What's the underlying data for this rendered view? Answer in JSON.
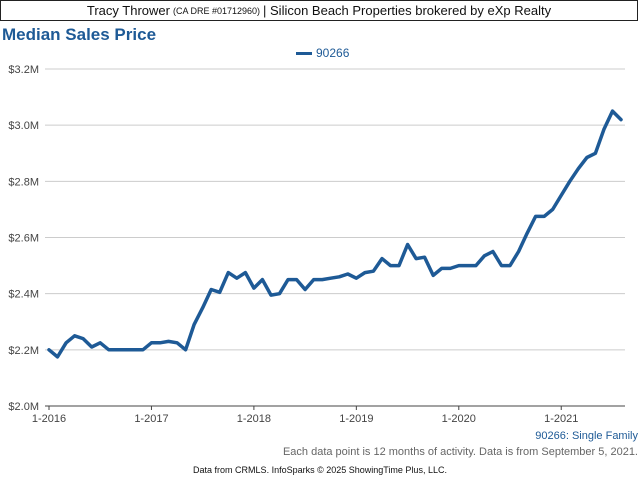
{
  "header": {
    "agent": "Tracy Thrower",
    "dre": "(CA DRE #01712960)",
    "brokerage": "| Silicon Beach Properties brokered by eXp Realty"
  },
  "chart_title": "Median Sales Price",
  "legend_label": "90266",
  "series_description": "90266: Single Family",
  "note": "Each data point is 12 months of activity. Data is from September 5, 2021.",
  "footer": "Data from CRMLS. InfoSparks © 2025 ShowingTime Plus, LLC.",
  "colors": {
    "series": "#1e5a96",
    "grid": "#cccccc",
    "axis": "#444444"
  },
  "chart_data": {
    "type": "line",
    "title": "Median Sales Price",
    "xlabel": "",
    "ylabel": "",
    "ylim": [
      2000000,
      3200000
    ],
    "y_ticks": [
      {
        "value": 2000000,
        "label": "$2.0M"
      },
      {
        "value": 2200000,
        "label": "$2.2M"
      },
      {
        "value": 2400000,
        "label": "$2.4M"
      },
      {
        "value": 2600000,
        "label": "$2.6M"
      },
      {
        "value": 2800000,
        "label": "$2.8M"
      },
      {
        "value": 3000000,
        "label": "$3.0M"
      },
      {
        "value": 3200000,
        "label": "$3.2M"
      }
    ],
    "x_ticks": [
      {
        "date": "2016-01",
        "label": "1-2016"
      },
      {
        "date": "2017-01",
        "label": "1-2017"
      },
      {
        "date": "2018-01",
        "label": "1-2018"
      },
      {
        "date": "2019-01",
        "label": "1-2019"
      },
      {
        "date": "2020-01",
        "label": "1-2020"
      },
      {
        "date": "2021-01",
        "label": "1-2021"
      }
    ],
    "xlim": [
      "2016-01",
      "2021-08"
    ],
    "grid": true,
    "legend_position": "top-center",
    "series": [
      {
        "name": "90266",
        "x": [
          "2016-01",
          "2016-02",
          "2016-03",
          "2016-04",
          "2016-05",
          "2016-06",
          "2016-07",
          "2016-08",
          "2016-09",
          "2016-10",
          "2016-11",
          "2016-12",
          "2017-01",
          "2017-02",
          "2017-03",
          "2017-04",
          "2017-05",
          "2017-06",
          "2017-07",
          "2017-08",
          "2017-09",
          "2017-10",
          "2017-11",
          "2017-12",
          "2018-01",
          "2018-02",
          "2018-03",
          "2018-04",
          "2018-05",
          "2018-06",
          "2018-07",
          "2018-08",
          "2018-09",
          "2018-10",
          "2018-11",
          "2018-12",
          "2019-01",
          "2019-02",
          "2019-03",
          "2019-04",
          "2019-05",
          "2019-06",
          "2019-07",
          "2019-08",
          "2019-09",
          "2019-10",
          "2019-11",
          "2019-12",
          "2020-01",
          "2020-02",
          "2020-03",
          "2020-04",
          "2020-05",
          "2020-06",
          "2020-07",
          "2020-08",
          "2020-09",
          "2020-10",
          "2020-11",
          "2020-12",
          "2021-01",
          "2021-02",
          "2021-03",
          "2021-04",
          "2021-05",
          "2021-06",
          "2021-07",
          "2021-08"
        ],
        "values": [
          2200000,
          2175000,
          2225000,
          2250000,
          2240000,
          2210000,
          2225000,
          2200000,
          2200000,
          2200000,
          2200000,
          2200000,
          2225000,
          2225000,
          2230000,
          2225000,
          2200000,
          2290000,
          2350000,
          2415000,
          2405000,
          2475000,
          2455000,
          2475000,
          2420000,
          2450000,
          2395000,
          2400000,
          2450000,
          2450000,
          2415000,
          2450000,
          2450000,
          2455000,
          2460000,
          2470000,
          2455000,
          2475000,
          2480000,
          2525000,
          2500000,
          2500000,
          2575000,
          2525000,
          2530000,
          2465000,
          2490000,
          2490000,
          2500000,
          2500000,
          2500000,
          2535000,
          2550000,
          2500000,
          2500000,
          2550000,
          2615000,
          2675000,
          2675000,
          2700000,
          2750000,
          2800000,
          2845000,
          2885000,
          2900000,
          2985000,
          3050000,
          3020000
        ]
      }
    ]
  }
}
